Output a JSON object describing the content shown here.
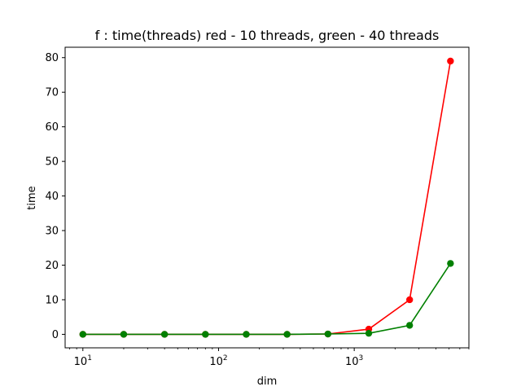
{
  "chart_data": {
    "type": "line",
    "title": "f : time(threads) red - 10 threads, green - 40 threads",
    "xlabel": "dim",
    "ylabel": "time",
    "xscale": "log",
    "xlim": [
      7.4,
      7000
    ],
    "ylim": [
      -3.9,
      83
    ],
    "grid": false,
    "legend": "none",
    "x_ticks": [
      {
        "value": 10,
        "base": "10",
        "exp": "1"
      },
      {
        "value": 100,
        "base": "10",
        "exp": "2"
      },
      {
        "value": 1000,
        "base": "10",
        "exp": "3"
      }
    ],
    "y_ticks": [
      0,
      10,
      20,
      30,
      40,
      50,
      60,
      70,
      80
    ],
    "x": [
      10,
      20,
      40,
      80,
      160,
      320,
      640,
      1280,
      2560,
      5120
    ],
    "series": [
      {
        "color": "#ff0000",
        "values": [
          0,
          0,
          0,
          0,
          0,
          0,
          0.1,
          1.5,
          10,
          79
        ]
      },
      {
        "color": "#008000",
        "values": [
          0,
          0,
          0,
          0,
          0,
          0,
          0.1,
          0.3,
          2.6,
          20.5
        ]
      }
    ]
  }
}
